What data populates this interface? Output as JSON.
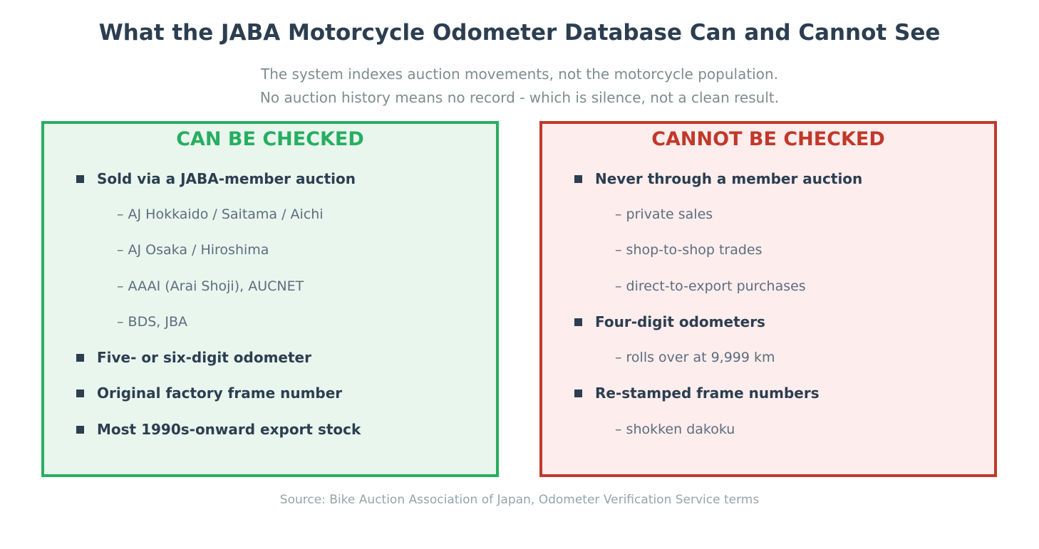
{
  "header": {
    "title": "What the JABA Motorcycle Odometer Database Can and Cannot See",
    "subtitle_lines": [
      "The system indexes auction movements, not the motorcycle population.",
      "No auction history means no record - which is silence, not a clean result."
    ]
  },
  "colors": {
    "can_accent": "#27ae60",
    "can_background": "#e9f6ee",
    "cannot_accent": "#c0392b",
    "cannot_background": "#fdeded",
    "text_dark": "#2c3e50"
  },
  "panels": {
    "can": {
      "heading": "CAN BE CHECKED",
      "rows": [
        {
          "type": "main",
          "text": "Sold via a JABA-member auction"
        },
        {
          "type": "sub",
          "text": "– AJ Hokkaido / Saitama / Aichi"
        },
        {
          "type": "sub",
          "text": "– AJ Osaka / Hiroshima"
        },
        {
          "type": "sub",
          "text": "– AAAI (Arai Shoji), AUCNET"
        },
        {
          "type": "sub",
          "text": "– BDS, JBA"
        },
        {
          "type": "main",
          "text": "Five- or six-digit odometer"
        },
        {
          "type": "main",
          "text": "Original factory frame number"
        },
        {
          "type": "main",
          "text": "Most 1990s-onward export stock"
        }
      ]
    },
    "cannot": {
      "heading": "CANNOT BE CHECKED",
      "rows": [
        {
          "type": "main",
          "text": "Never through a member auction"
        },
        {
          "type": "sub",
          "text": "– private sales"
        },
        {
          "type": "sub",
          "text": "– shop-to-shop trades"
        },
        {
          "type": "sub",
          "text": "– direct-to-export purchases"
        },
        {
          "type": "main",
          "text": "Four-digit odometers"
        },
        {
          "type": "sub",
          "text": "– rolls over at 9,999 km"
        },
        {
          "type": "main",
          "text": "Re-stamped frame numbers"
        },
        {
          "type": "sub",
          "text": "– shokken dakoku"
        }
      ]
    }
  },
  "footer": {
    "source": "Source: Bike Auction Association of Japan, Odometer Verification Service terms"
  }
}
